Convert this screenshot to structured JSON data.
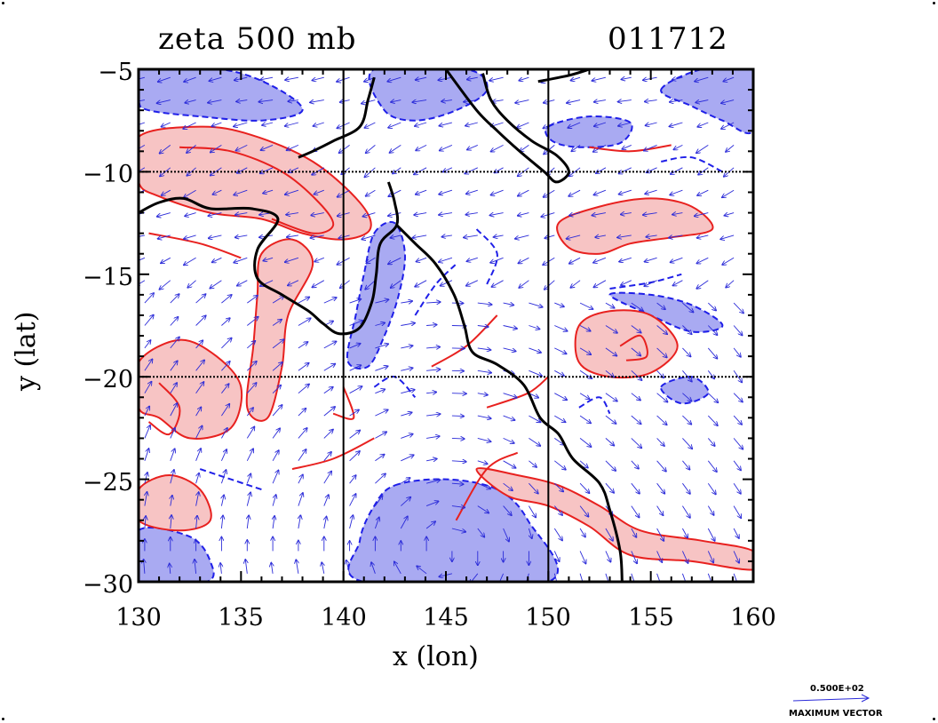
{
  "title_left": "zeta 500 mb",
  "title_right": "011712",
  "xlabel": "x (lon)",
  "ylabel": "y (lat)",
  "x_ticks": [
    "130",
    "135",
    "140",
    "145",
    "150",
    "155",
    "160"
  ],
  "y_ticks": [
    "−5",
    "−10",
    "−15",
    "−20",
    "−25",
    "−30"
  ],
  "legend": {
    "value": "0.500E+02",
    "label": "MAXIMUM VECTOR"
  },
  "colors": {
    "positive_line": "#e8211f",
    "positive_fill": "#f7c4c4",
    "negative_line": "#1f1fe8",
    "negative_fill": "#a9aaf2",
    "coastline": "#000000",
    "grid": "#000000",
    "vectors": "#2a2ad8"
  },
  "chart_data": {
    "type": "map",
    "title": "zeta 500 mb",
    "timestamp": "011712",
    "xlabel": "x (lon)",
    "ylabel": "y (lat)",
    "xlim": [
      130,
      160
    ],
    "ylim": [
      -30,
      -5
    ],
    "x_ticks": [
      130,
      135,
      140,
      145,
      150,
      155,
      160
    ],
    "y_ticks": [
      -5,
      -10,
      -15,
      -20,
      -25,
      -30
    ],
    "grid_lon": [
      140,
      150
    ],
    "grid_lat": [
      -10,
      -20
    ],
    "vector_max": "0.500E+02",
    "vector_label": "MAXIMUM VECTOR",
    "coastline": [
      [
        141.5,
        -5.4
      ],
      [
        141.2,
        -6.5
      ],
      [
        140.8,
        -7.8
      ],
      [
        139.5,
        -8.5
      ],
      [
        138.5,
        -9.0
      ],
      [
        137.8,
        -9.3
      ]
    ],
    "coastline_cape_york": [
      [
        142.2,
        -10.5
      ],
      [
        142.5,
        -11.5
      ],
      [
        142.6,
        -12.6
      ],
      [
        141.8,
        -13.5
      ],
      [
        141.6,
        -15.0
      ],
      [
        141.4,
        -16.3
      ],
      [
        140.8,
        -17.6
      ],
      [
        139.8,
        -17.9
      ],
      [
        139.0,
        -17.4
      ],
      [
        138.3,
        -16.8
      ],
      [
        137.0,
        -16.0
      ],
      [
        135.8,
        -15.2
      ],
      [
        135.8,
        -13.8
      ],
      [
        136.8,
        -12.3
      ],
      [
        135.5,
        -11.8
      ],
      [
        133.5,
        -11.8
      ],
      [
        132.2,
        -11.3
      ],
      [
        131.0,
        -11.5
      ],
      [
        130.0,
        -12.0
      ]
    ],
    "coastline_east": [
      [
        142.6,
        -12.6
      ],
      [
        143.5,
        -13.5
      ],
      [
        144.5,
        -14.5
      ],
      [
        145.4,
        -16.0
      ],
      [
        145.9,
        -17.5
      ],
      [
        146.3,
        -18.8
      ],
      [
        147.5,
        -19.4
      ],
      [
        148.8,
        -20.4
      ],
      [
        149.6,
        -22.0
      ],
      [
        150.5,
        -22.8
      ],
      [
        151.2,
        -24.0
      ],
      [
        152.5,
        -25.2
      ],
      [
        153.0,
        -26.5
      ],
      [
        153.5,
        -28.5
      ],
      [
        153.6,
        -30.0
      ]
    ],
    "coastline_png": [
      [
        145.0,
        -5.0
      ],
      [
        146.5,
        -7.0
      ],
      [
        147.5,
        -8.0
      ],
      [
        148.6,
        -9.0
      ],
      [
        149.8,
        -10.0
      ],
      [
        150.4,
        -10.5
      ],
      [
        151.0,
        -10.0
      ],
      [
        150.4,
        -9.2
      ],
      [
        149.2,
        -8.5
      ],
      [
        148.0,
        -7.5
      ],
      [
        147.2,
        -6.5
      ],
      [
        146.8,
        -5.2
      ]
    ],
    "coastline_ne": [
      [
        149.5,
        -5.6
      ],
      [
        151.0,
        -5.3
      ],
      [
        152.0,
        -5.0
      ]
    ],
    "positive_regions": [
      [
        [
          130.0,
          -8.3
        ],
        [
          133.0,
          -7.8
        ],
        [
          135.5,
          -8.2
        ],
        [
          138.5,
          -9.5
        ],
        [
          140.8,
          -11.5
        ],
        [
          141.3,
          -12.8
        ],
        [
          140.0,
          -13.3
        ],
        [
          138.0,
          -13.0
        ],
        [
          136.0,
          -12.3
        ],
        [
          133.5,
          -12.0
        ],
        [
          131.0,
          -11.2
        ],
        [
          130.0,
          -10.5
        ]
      ],
      [
        [
          136.0,
          -14.0
        ],
        [
          137.5,
          -13.3
        ],
        [
          138.5,
          -14.5
        ],
        [
          137.3,
          -17.0
        ],
        [
          137.0,
          -19.5
        ],
        [
          136.3,
          -22.0
        ],
        [
          135.3,
          -21.5
        ],
        [
          135.6,
          -18.5
        ],
        [
          135.8,
          -16.0
        ]
      ],
      [
        [
          130.0,
          -19.3
        ],
        [
          132.0,
          -18.2
        ],
        [
          133.8,
          -19.0
        ],
        [
          135.0,
          -20.5
        ],
        [
          134.5,
          -22.5
        ],
        [
          132.5,
          -23.0
        ],
        [
          131.0,
          -22.0
        ],
        [
          130.0,
          -21.5
        ]
      ],
      [
        [
          150.5,
          -12.5
        ],
        [
          152.5,
          -11.7
        ],
        [
          155.0,
          -11.3
        ],
        [
          157.0,
          -11.7
        ],
        [
          158.0,
          -12.8
        ],
        [
          156.0,
          -13.2
        ],
        [
          154.0,
          -13.5
        ],
        [
          152.5,
          -14.0
        ],
        [
          151.0,
          -13.7
        ]
      ],
      [
        [
          151.5,
          -17.5
        ],
        [
          153.0,
          -16.8
        ],
        [
          155.0,
          -17.0
        ],
        [
          156.3,
          -18.5
        ],
        [
          155.0,
          -19.8
        ],
        [
          153.0,
          -20.0
        ],
        [
          151.5,
          -19.3
        ]
      ],
      [
        [
          146.5,
          -24.5
        ],
        [
          148.5,
          -24.8
        ],
        [
          150.5,
          -25.3
        ],
        [
          152.5,
          -26.3
        ],
        [
          154.5,
          -27.5
        ],
        [
          157.5,
          -28.0
        ],
        [
          160.0,
          -28.5
        ],
        [
          160.0,
          -29.4
        ],
        [
          157.0,
          -29.0
        ],
        [
          154.0,
          -28.7
        ],
        [
          152.0,
          -27.3
        ],
        [
          150.0,
          -26.3
        ],
        [
          148.0,
          -25.8
        ]
      ],
      [
        [
          130.0,
          -25.5
        ],
        [
          131.5,
          -24.8
        ],
        [
          133.0,
          -25.5
        ],
        [
          133.5,
          -27.0
        ],
        [
          132.0,
          -27.5
        ],
        [
          130.0,
          -27.0
        ]
      ]
    ],
    "negative_regions": [
      [
        [
          142.5,
          -25.3
        ],
        [
          145.0,
          -25.0
        ],
        [
          147.5,
          -25.5
        ],
        [
          149.0,
          -27.0
        ],
        [
          150.0,
          -30.0
        ],
        [
          141.0,
          -30.0
        ],
        [
          140.8,
          -28.0
        ],
        [
          141.5,
          -26.3
        ]
      ],
      [
        [
          130.0,
          -27.5
        ],
        [
          132.5,
          -27.8
        ],
        [
          133.5,
          -29.0
        ],
        [
          133.3,
          -30.0
        ],
        [
          130.0,
          -30.0
        ]
      ],
      [
        [
          141.5,
          -13.0
        ],
        [
          142.5,
          -12.5
        ],
        [
          143.0,
          -14.0
        ],
        [
          142.7,
          -16.0
        ],
        [
          142.0,
          -18.0
        ],
        [
          141.2,
          -19.5
        ],
        [
          140.2,
          -19.2
        ],
        [
          140.6,
          -17.0
        ],
        [
          141.0,
          -15.0
        ]
      ],
      [
        [
          130.0,
          -5.0
        ],
        [
          134.0,
          -5.0
        ],
        [
          136.5,
          -5.8
        ],
        [
          138.0,
          -7.0
        ],
        [
          136.0,
          -7.5
        ],
        [
          133.0,
          -7.3
        ],
        [
          130.5,
          -7.0
        ],
        [
          130.0,
          -6.5
        ]
      ],
      [
        [
          141.5,
          -5.0
        ],
        [
          146.0,
          -5.0
        ],
        [
          147.0,
          -6.0
        ],
        [
          145.5,
          -7.0
        ],
        [
          143.5,
          -7.5
        ],
        [
          142.0,
          -7.0
        ]
      ],
      [
        [
          150.0,
          -7.8
        ],
        [
          152.0,
          -7.3
        ],
        [
          154.0,
          -7.6
        ],
        [
          153.5,
          -8.6
        ],
        [
          151.5,
          -8.8
        ],
        [
          150.2,
          -8.5
        ]
      ],
      [
        [
          153.0,
          -16.0
        ],
        [
          155.0,
          -16.0
        ],
        [
          157.0,
          -16.5
        ],
        [
          158.5,
          -17.5
        ],
        [
          157.0,
          -17.8
        ],
        [
          155.0,
          -17.0
        ]
      ],
      [
        [
          155.5,
          -6.0
        ],
        [
          157.5,
          -5.0
        ],
        [
          160.0,
          -5.0
        ],
        [
          160.0,
          -8.0
        ],
        [
          158.5,
          -7.5
        ],
        [
          157.0,
          -6.8
        ]
      ],
      [
        [
          155.5,
          -20.5
        ],
        [
          157.0,
          -20.0
        ],
        [
          157.8,
          -20.8
        ],
        [
          156.5,
          -21.3
        ]
      ]
    ],
    "positive_contours": [
      [
        [
          132.0,
          -8.8
        ],
        [
          134.5,
          -9.0
        ],
        [
          137.0,
          -10.0
        ],
        [
          138.8,
          -11.5
        ],
        [
          139.5,
          -12.6
        ],
        [
          138.5,
          -13.0
        ],
        [
          136.5,
          -12.3
        ]
      ],
      [
        [
          130.5,
          -13.0
        ],
        [
          133.0,
          -13.5
        ],
        [
          135.0,
          -14.2
        ]
      ],
      [
        [
          144.3,
          -19.5
        ],
        [
          146.0,
          -18.5
        ],
        [
          147.5,
          -17.0
        ]
      ],
      [
        [
          147.0,
          -21.5
        ],
        [
          149.0,
          -20.8
        ],
        [
          150.0,
          -20.0
        ]
      ],
      [
        [
          137.5,
          -24.5
        ],
        [
          139.5,
          -24.0
        ],
        [
          141.5,
          -23.0
        ]
      ],
      [
        [
          131.0,
          -20.3
        ],
        [
          132.0,
          -21.5
        ],
        [
          131.5,
          -22.8
        ],
        [
          130.5,
          -22.2
        ]
      ],
      [
        [
          153.5,
          -18.5
        ],
        [
          154.5,
          -18.0
        ],
        [
          154.8,
          -19.0
        ],
        [
          153.8,
          -19.2
        ]
      ],
      [
        [
          140.0,
          -20.5
        ],
        [
          140.5,
          -22.0
        ],
        [
          139.5,
          -21.8
        ]
      ],
      [
        [
          145.5,
          -27.0
        ],
        [
          147.0,
          -24.5
        ],
        [
          148.5,
          -23.7
        ]
      ],
      [
        [
          152.0,
          -8.8
        ],
        [
          154.0,
          -9.0
        ],
        [
          156.0,
          -8.7
        ]
      ]
    ],
    "negative_contours": [
      [
        [
          143.5,
          -17.0
        ],
        [
          144.5,
          -15.5
        ],
        [
          145.5,
          -14.5
        ]
      ],
      [
        [
          146.5,
          -12.8
        ],
        [
          147.5,
          -14.0
        ],
        [
          147.0,
          -15.5
        ]
      ],
      [
        [
          153.0,
          -15.7
        ],
        [
          155.0,
          -15.4
        ],
        [
          156.5,
          -15.0
        ]
      ],
      [
        [
          151.5,
          -21.5
        ],
        [
          152.5,
          -21.0
        ],
        [
          153.0,
          -21.8
        ]
      ],
      [
        [
          141.5,
          -20.5
        ],
        [
          142.5,
          -20.0
        ],
        [
          143.5,
          -21.0
        ]
      ],
      [
        [
          155.5,
          -9.5
        ],
        [
          157.0,
          -9.3
        ],
        [
          158.5,
          -10.0
        ]
      ],
      [
        [
          133.0,
          -24.5
        ],
        [
          134.5,
          -25.0
        ],
        [
          136.0,
          -25.5
        ]
      ]
    ]
  }
}
